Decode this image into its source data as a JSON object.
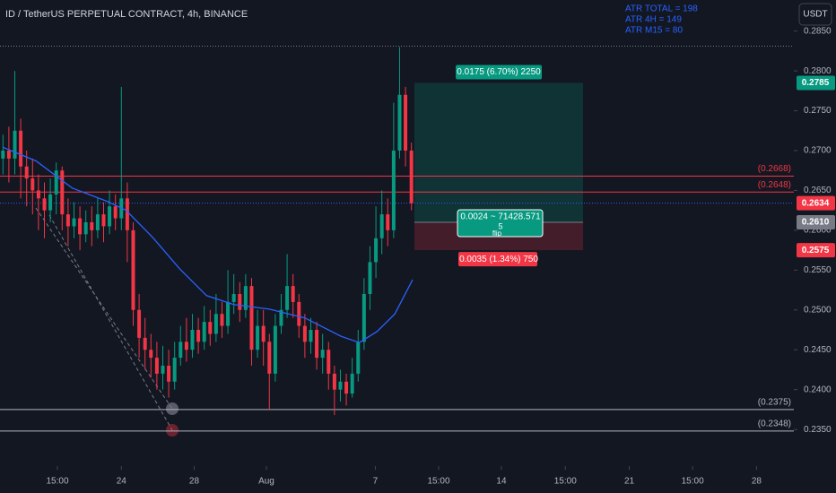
{
  "chart_data": {
    "type": "candlestick",
    "title": "ID / TetherUS PERPETUAL CONTRACT, 4h, BINANCE",
    "currency": "USDT",
    "indicators": [
      "ATR TOTAL = 198",
      "ATR 4H = 149",
      "ATR M15 = 80"
    ],
    "up_color": "#089981",
    "down_color": "#f23645",
    "open": [
      0.269,
      0.27,
      0.269,
      0.2725,
      0.268,
      0.2665,
      0.265,
      0.264,
      0.2625,
      0.2645,
      0.2675,
      0.262,
      0.2605,
      0.2615,
      0.2595,
      0.261,
      0.26,
      0.262,
      0.2605,
      0.263,
      0.2615,
      0.264,
      0.26,
      0.25,
      0.2465,
      0.245,
      0.244,
      0.242,
      0.243,
      0.241,
      0.244,
      0.246,
      0.245,
      0.2475,
      0.246,
      0.2485,
      0.247,
      0.2495,
      0.248,
      0.251,
      0.252,
      0.25,
      0.253,
      0.245,
      0.248,
      0.246,
      0.242,
      0.248,
      0.25,
      0.253,
      0.251,
      0.248,
      0.246,
      0.2475,
      0.244,
      0.245,
      0.242,
      0.24,
      0.241,
      0.2395,
      0.242,
      0.246,
      0.252,
      0.256,
      0.259,
      0.262,
      0.26,
      0.27,
      0.277,
      0.27
    ],
    "high": [
      0.272,
      0.273,
      0.28,
      0.274,
      0.27,
      0.269,
      0.267,
      0.266,
      0.2665,
      0.2685,
      0.268,
      0.264,
      0.2635,
      0.263,
      0.2625,
      0.263,
      0.264,
      0.2635,
      0.265,
      0.2645,
      0.278,
      0.266,
      0.261,
      0.252,
      0.249,
      0.247,
      0.246,
      0.2455,
      0.245,
      0.246,
      0.248,
      0.249,
      0.2495,
      0.249,
      0.2505,
      0.25,
      0.252,
      0.251,
      0.255,
      0.2545,
      0.2535,
      0.2545,
      0.254,
      0.25,
      0.25,
      0.247,
      0.2495,
      0.252,
      0.257,
      0.2545,
      0.252,
      0.2495,
      0.249,
      0.2485,
      0.247,
      0.246,
      0.243,
      0.2425,
      0.242,
      0.244,
      0.2475,
      0.254,
      0.258,
      0.263,
      0.265,
      0.264,
      0.276,
      0.283,
      0.278,
      0.271
    ],
    "low": [
      0.267,
      0.266,
      0.267,
      0.264,
      0.263,
      0.262,
      0.26,
      0.259,
      0.261,
      0.262,
      0.26,
      0.258,
      0.259,
      0.2575,
      0.2585,
      0.258,
      0.259,
      0.2585,
      0.2595,
      0.26,
      0.26,
      0.256,
      0.248,
      0.244,
      0.2425,
      0.2415,
      0.24,
      0.24,
      0.239,
      0.24,
      0.243,
      0.2435,
      0.244,
      0.2445,
      0.245,
      0.2455,
      0.246,
      0.2465,
      0.247,
      0.2495,
      0.2485,
      0.249,
      0.243,
      0.244,
      0.243,
      0.2375,
      0.241,
      0.247,
      0.249,
      0.249,
      0.2465,
      0.244,
      0.2445,
      0.2425,
      0.242,
      0.24,
      0.2368,
      0.2385,
      0.238,
      0.239,
      0.241,
      0.245,
      0.25,
      0.254,
      0.257,
      0.258,
      0.259,
      0.269,
      0.268,
      0.2625
    ],
    "close": [
      0.27,
      0.269,
      0.2725,
      0.268,
      0.2665,
      0.265,
      0.264,
      0.2625,
      0.2645,
      0.2675,
      0.262,
      0.2605,
      0.2615,
      0.2595,
      0.261,
      0.26,
      0.262,
      0.2605,
      0.263,
      0.2615,
      0.264,
      0.26,
      0.25,
      0.2465,
      0.245,
      0.244,
      0.242,
      0.243,
      0.241,
      0.244,
      0.246,
      0.245,
      0.2475,
      0.246,
      0.2485,
      0.247,
      0.2495,
      0.248,
      0.251,
      0.252,
      0.25,
      0.253,
      0.245,
      0.248,
      0.246,
      0.242,
      0.248,
      0.25,
      0.253,
      0.251,
      0.248,
      0.246,
      0.2475,
      0.244,
      0.245,
      0.242,
      0.24,
      0.241,
      0.2395,
      0.242,
      0.246,
      0.252,
      0.256,
      0.259,
      0.262,
      0.26,
      0.27,
      0.277,
      0.27,
      0.2634
    ],
    "ma": {
      "color": "#2962ff",
      "x": [
        0,
        5.6,
        11.7,
        17.7,
        20.8,
        25.3,
        29.8,
        34.4,
        38.9,
        45,
        51,
        57.1,
        60.2,
        63.2,
        66.2,
        69.2
      ],
      "values": [
        0.2704,
        0.2687,
        0.2653,
        0.2636,
        0.2625,
        0.2591,
        0.2552,
        0.2518,
        0.2507,
        0.2501,
        0.249,
        0.2467,
        0.2459,
        0.2473,
        0.2495,
        0.2538
      ]
    },
    "levels": [
      {
        "value": 0.2668,
        "label": "(0.2668)",
        "color": "#f23645"
      },
      {
        "value": 0.2648,
        "label": "(0.2648)",
        "color": "#f23645"
      },
      {
        "value": 0.2375,
        "label": "(0.2375)",
        "color": "#b2b5be"
      },
      {
        "value": 0.2348,
        "label": "(0.2348)",
        "color": "#b2b5be"
      }
    ],
    "high_line": 0.2831,
    "price_labels": [
      {
        "value": 0.2785,
        "label": "0.2785",
        "color": "#089981"
      },
      {
        "value": 0.2634,
        "label": "0.2634",
        "color": "#f23645"
      },
      {
        "value": 0.261,
        "label": "0.2610",
        "color": "#787b86"
      },
      {
        "value": 0.2575,
        "label": "0.2575",
        "color": "#f23645"
      }
    ],
    "position": {
      "start": 69.5,
      "end": 98,
      "target": 0.2785,
      "entry": 0.261,
      "stop": 0.2575,
      "target_label": "0.0175 (6.70%) 2250",
      "entry_label": "0.0024 ~ 71428.571",
      "qty_label": "5",
      "flip_label": "flip",
      "stop_label": "0.0035 (1.34%) 750"
    },
    "xlim": [
      -0.5,
      133.6
    ],
    "ylim": [
      0.2304,
      0.2889
    ],
    "xticks": [
      {
        "value": 9.2,
        "label": "15:00"
      },
      {
        "value": 20,
        "label": "24"
      },
      {
        "value": 32.3,
        "label": "28"
      },
      {
        "value": 44.5,
        "label": "Aug"
      },
      {
        "value": 62.9,
        "label": "7"
      },
      {
        "value": 73.6,
        "label": "15:00"
      },
      {
        "value": 84.2,
        "label": "14"
      },
      {
        "value": 95,
        "label": "15:00"
      },
      {
        "value": 105.8,
        "label": "21"
      },
      {
        "value": 116.5,
        "label": "15:00"
      },
      {
        "value": 127.3,
        "label": "28"
      }
    ],
    "yticks": [
      {
        "value": 0.235,
        "label": "0.2350"
      },
      {
        "value": 0.24,
        "label": "0.2400"
      },
      {
        "value": 0.245,
        "label": "0.2450"
      },
      {
        "value": 0.25,
        "label": "0.2500"
      },
      {
        "value": 0.255,
        "label": "0.2550"
      },
      {
        "value": 0.26,
        "label": "0.2600"
      },
      {
        "value": 0.265,
        "label": "0.2650"
      },
      {
        "value": 0.27,
        "label": "0.2700"
      },
      {
        "value": 0.275,
        "label": "0.2750"
      },
      {
        "value": 0.28,
        "label": "0.2800"
      },
      {
        "value": 0.285,
        "label": "0.2850"
      }
    ]
  }
}
